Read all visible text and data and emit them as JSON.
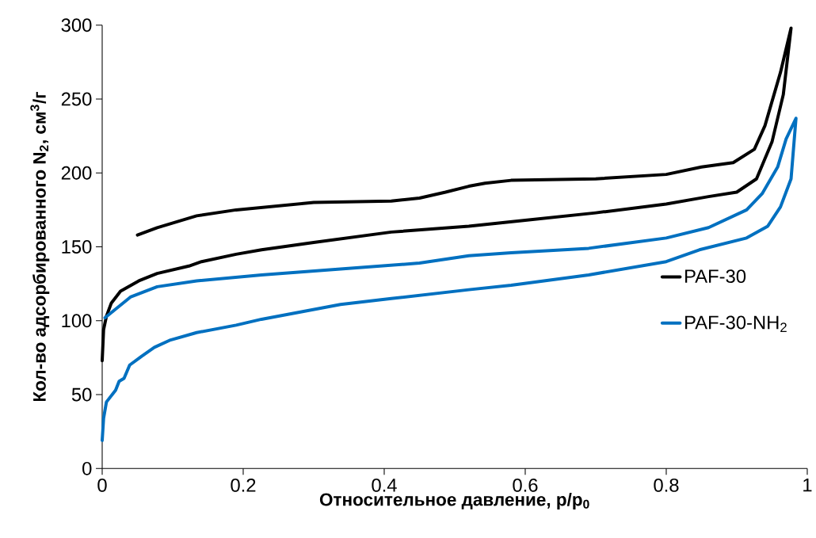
{
  "chart_data": {
    "type": "line",
    "xlabel": "Относительное давление, p/p$_{0}$",
    "ylabel": "Кол-во адсорбированного N$_{2}$, см$^{3}$/г",
    "xlim": [
      0,
      1
    ],
    "ylim": [
      0,
      300
    ],
    "xticks": [
      0,
      0.2,
      0.4,
      0.6,
      0.8,
      1
    ],
    "yticks": [
      0,
      50,
      100,
      150,
      200,
      250,
      300
    ],
    "grid": false,
    "legend": "right",
    "marker": "none",
    "line_style": "solid",
    "series": [
      {
        "name": "PAF-30",
        "color": "#000000",
        "x": [
          0,
          0.002,
          0.006,
          0.013,
          0.026,
          0.052,
          0.078,
          0.123,
          0.141,
          0.19,
          0.226,
          0.3,
          0.41,
          0.52,
          0.6,
          0.7,
          0.8,
          0.86,
          0.9,
          0.928,
          0.95,
          0.966,
          0.977,
          0.962,
          0.94,
          0.925,
          0.895,
          0.85,
          0.8,
          0.7,
          0.58,
          0.543,
          0.52,
          0.487,
          0.45,
          0.41,
          0.3,
          0.19,
          0.134,
          0.078,
          0.05
        ],
        "values": [
          73,
          94,
          103,
          112,
          120,
          127,
          132,
          137,
          140,
          145,
          148,
          153,
          160,
          164,
          168,
          173,
          179,
          184,
          187,
          196,
          221,
          253,
          298,
          268,
          232,
          216,
          207,
          204,
          199,
          196,
          195,
          193,
          191,
          187,
          183,
          181,
          180,
          175,
          171,
          163,
          158
        ]
      },
      {
        "name": "PAF-30-NH$_{2}$",
        "color": "#0070c0",
        "x": [
          0,
          0.002,
          0.006,
          0.019,
          0.024,
          0.031,
          0.039,
          0.056,
          0.074,
          0.097,
          0.134,
          0.19,
          0.208,
          0.226,
          0.338,
          0.41,
          0.52,
          0.58,
          0.69,
          0.8,
          0.847,
          0.914,
          0.944,
          0.962,
          0.977,
          0.984,
          0.97,
          0.958,
          0.936,
          0.914,
          0.86,
          0.8,
          0.69,
          0.58,
          0.52,
          0.45,
          0.338,
          0.226,
          0.134,
          0.078,
          0.04,
          0.004
        ],
        "values": [
          19,
          34,
          45,
          53,
          59,
          61,
          70,
          76,
          82,
          87,
          92,
          97,
          99,
          101,
          111,
          115,
          121,
          124,
          131,
          140,
          148,
          156,
          164,
          177,
          196,
          237,
          223,
          204,
          186,
          175,
          163,
          156,
          149,
          146,
          144,
          139,
          135,
          131,
          127,
          123,
          116,
          102
        ]
      }
    ]
  }
}
